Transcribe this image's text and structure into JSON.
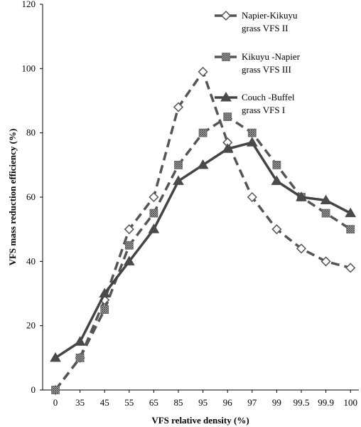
{
  "chart_data": {
    "type": "line",
    "categories": [
      "0",
      "35",
      "45",
      "55",
      "65",
      "85",
      "95",
      "96",
      "97",
      "99",
      "99.5",
      "99.9",
      "100"
    ],
    "xlabel": "VFS relative density (%)",
    "ylabel": "VFS mass reduction efficiency (%)",
    "ylim": [
      0,
      120
    ],
    "yticks": [
      0,
      20,
      40,
      60,
      80,
      100,
      120
    ],
    "grid": false,
    "legend_position": "top-right",
    "series": [
      {
        "name_line1": "Napier-Kikuyu",
        "name_line2": "grass VFS II",
        "values": [
          0,
          10,
          28,
          50,
          60,
          88,
          99,
          77,
          60,
          50,
          44,
          40,
          38
        ],
        "line_style": "dashed",
        "marker": "diamond-open",
        "color": "#555555"
      },
      {
        "name_line1": "Kikuyu -Napier",
        "name_line2": "grass VFS III",
        "values": [
          0,
          10,
          25,
          45,
          55,
          70,
          80,
          85,
          80,
          70,
          60,
          55,
          50
        ],
        "line_style": "dashed",
        "marker": "square-hatched",
        "color": "#555555"
      },
      {
        "name_line1": "Couch -Buffel",
        "name_line2": "grass VFS I",
        "values": [
          10,
          15,
          30,
          40,
          50,
          65,
          70,
          75,
          77,
          65,
          60,
          59,
          55
        ],
        "line_style": "solid",
        "marker": "triangle",
        "color": "#444444"
      }
    ]
  }
}
